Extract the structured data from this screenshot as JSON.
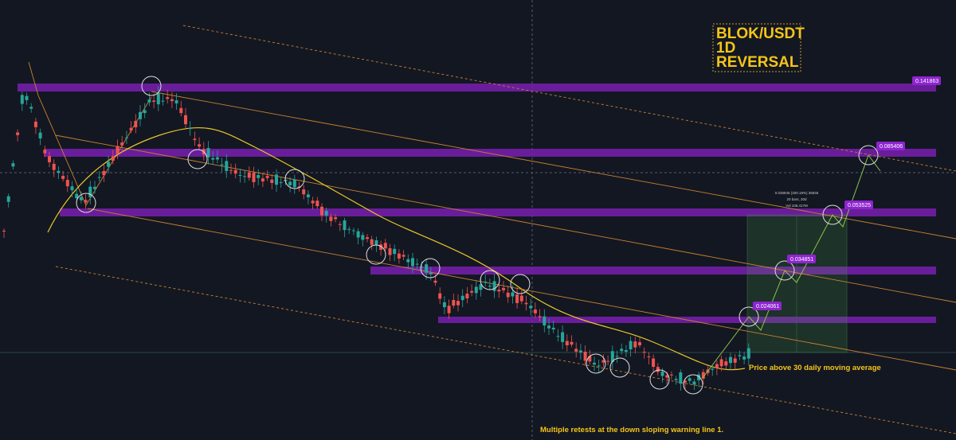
{
  "title_box": {
    "lines": [
      "BLOK/USDT",
      "1D",
      "REVERSAL"
    ]
  },
  "price_labels": [
    "0.141863",
    "0.085406",
    "0.053525",
    "0.034851",
    "0.024061"
  ],
  "measure": {
    "lines": [
      "0.035845 (200.19%) 35845",
      "20 bars, 20d",
      "Vol 108.417M"
    ]
  },
  "annotations": {
    "moving_average": "Price above 30 daily moving average",
    "retests": "Multiple retests at the down sloping warning line 1."
  }
}
